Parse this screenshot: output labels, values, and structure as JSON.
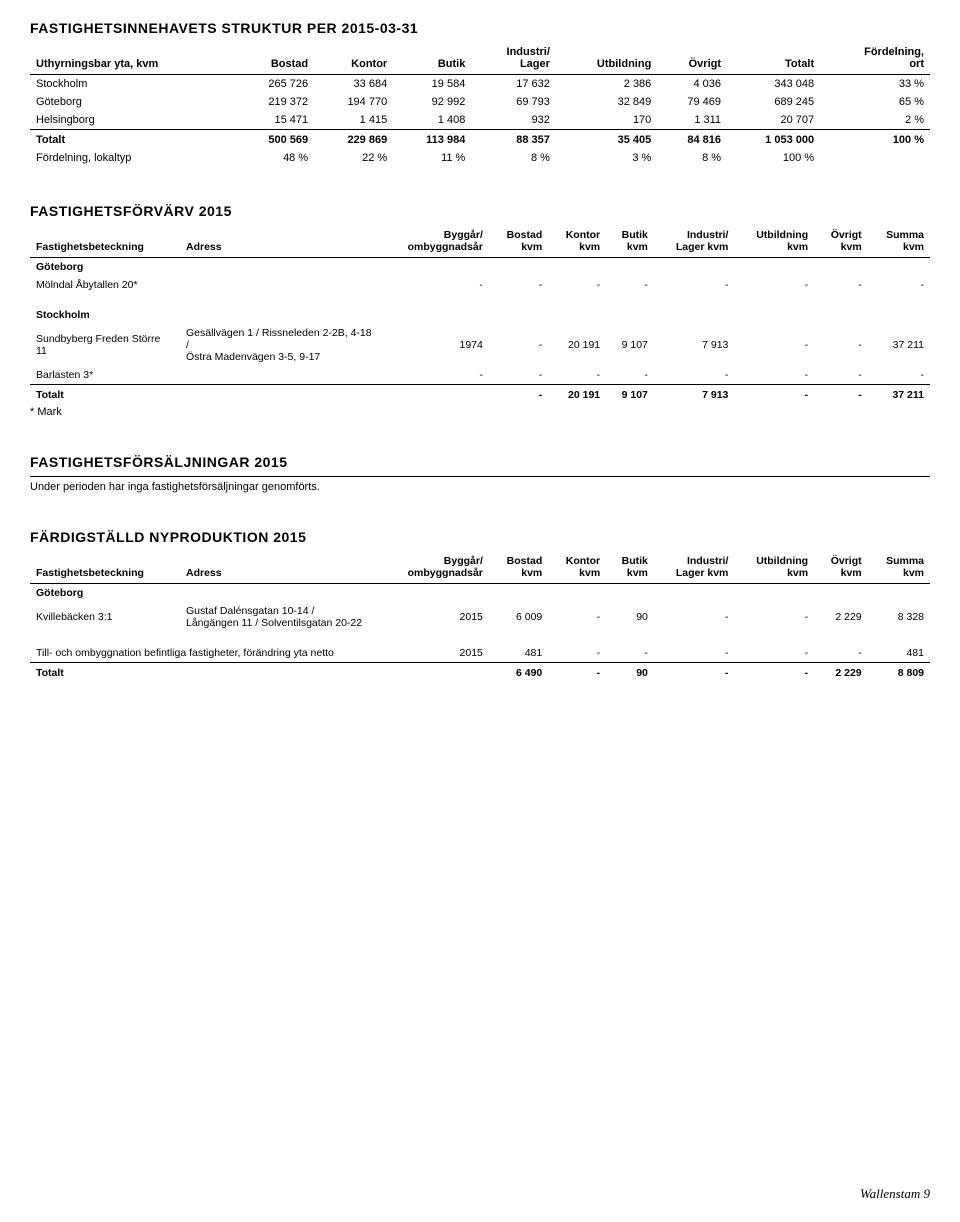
{
  "table1": {
    "title": "FASTIGHETSINNEHAVETS STRUKTUR PER 2015-03-31",
    "headers": [
      "Uthyrningsbar yta, kvm",
      "Bostad",
      "Kontor",
      "Butik",
      "Industri/\nLager",
      "Utbildning",
      "Övrigt",
      "Totalt",
      "Fördelning,\nort"
    ],
    "rows": [
      [
        "Stockholm",
        "265 726",
        "33 684",
        "19 584",
        "17 632",
        "2 386",
        "4 036",
        "343 048",
        "33 %"
      ],
      [
        "Göteborg",
        "219 372",
        "194 770",
        "92 992",
        "69 793",
        "32 849",
        "79 469",
        "689 245",
        "65 %"
      ],
      [
        "Helsingborg",
        "15 471",
        "1 415",
        "1 408",
        "932",
        "170",
        "1 311",
        "20 707",
        "2 %"
      ]
    ],
    "total": [
      "Totalt",
      "500 569",
      "229 869",
      "113 984",
      "88 357",
      "35 405",
      "84 816",
      "1 053 000",
      "100 %"
    ],
    "distrib": [
      "Fördelning, lokaltyp",
      "48 %",
      "22 %",
      "11 %",
      "8 %",
      "3 %",
      "8 %",
      "100 %",
      ""
    ]
  },
  "table2": {
    "title": "FASTIGHETSFÖRVÄRV 2015",
    "headers": [
      "Fastighetsbeteckning",
      "Adress",
      "Byggår/\nombyggnadsår",
      "Bostad\nkvm",
      "Kontor\nkvm",
      "Butik\nkvm",
      "Industri/\nLager kvm",
      "Utbildning\nkvm",
      "Övrigt\nkvm",
      "Summa\nkvm"
    ],
    "group1_label": "Göteborg",
    "group1_rows": [
      [
        "Mölndal Åbytallen 20*",
        "",
        "-",
        "-",
        "-",
        "-",
        "-",
        "-",
        "-",
        "-"
      ]
    ],
    "group2_label": "Stockholm",
    "group2_rows": [
      [
        "Sundbyberg Freden Större 11",
        "Gesällvägen 1 / Rissneleden 2-2B, 4-18 /\nÖstra Madenvägen 3-5, 9-17",
        "1974",
        "-",
        "20 191",
        "9 107",
        "7 913",
        "-",
        "-",
        "37 211"
      ],
      [
        "Barlasten 3*",
        "",
        "-",
        "-",
        "-",
        "-",
        "-",
        "-",
        "-",
        "-"
      ]
    ],
    "total": [
      "Totalt",
      "",
      "",
      "-",
      "20 191",
      "9 107",
      "7 913",
      "-",
      "-",
      "37 211"
    ],
    "note": "* Mark"
  },
  "table3": {
    "title": "FASTIGHETSFÖRSÄLJNINGAR 2015",
    "text": "Under perioden har inga fastighetsförsäljningar genomförts."
  },
  "table4": {
    "title": "FÄRDIGSTÄLLD NYPRODUKTION 2015",
    "headers": [
      "Fastighetsbeteckning",
      "Adress",
      "Byggår/\nombyggnadsår",
      "Bostad\nkvm",
      "Kontor\nkvm",
      "Butik\nkvm",
      "Industri/\nLager kvm",
      "Utbildning\nkvm",
      "Övrigt\nkvm",
      "Summa\nkvm"
    ],
    "group1_label": "Göteborg",
    "group1_rows": [
      [
        "Kvillebäcken 3:1",
        "Gustaf Dalénsgatan 10-14 /\nLångängen 11 / Solventilsgatan 20-22",
        "2015",
        "6 009",
        "-",
        "90",
        "-",
        "-",
        "2 229",
        "8 328"
      ]
    ],
    "extra_row": [
      "Till- och ombyggnation befintliga fastigheter, förändring yta netto",
      "",
      "2015",
      "481",
      "-",
      "-",
      "-",
      "-",
      "-",
      "481"
    ],
    "total": [
      "Totalt",
      "",
      "",
      "6 490",
      "-",
      "90",
      "-",
      "-",
      "2 229",
      "8 809"
    ]
  },
  "footer": "Wallenstam 9"
}
